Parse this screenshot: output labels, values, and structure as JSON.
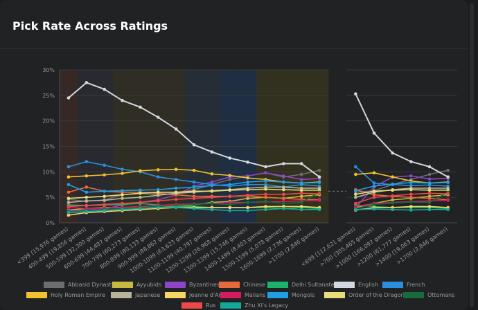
{
  "card": {
    "title": "Pick Rate Across Ratings"
  },
  "chart_data": {
    "type": "line",
    "title": "Pick Rate Across Ratings",
    "y_ticks": [
      "0%",
      "5%",
      "10%",
      "15%",
      "20%",
      "25%",
      "30%"
    ],
    "ylim": [
      0,
      30
    ],
    "grid": true,
    "legend_position": "bottom",
    "panels": [
      {
        "categories": [
          "<399 (15,976 games)",
          "400-499 (19,856 games)",
          "500-599 (32,300 games)",
          "600-699 (44,487 games)",
          "700-799 (60,273 games)",
          "800-899 (80,133 games)",
          "900-999 (88,862 games)",
          "1000-1099 (63,623 games)",
          "1100-1199 (40,797 games)",
          "1200-1299 (26,968 games)",
          "1300-1399 (15,746 games)",
          "1400-1499 (8,403 games)",
          "1500-1599 (5,078 games)",
          "1600-1699 (2,736 games)",
          ">1700 (2,846 games)"
        ],
        "band_colors": [
          "#3a2a26",
          "#2a2c33",
          "#2a2c33",
          "#333024",
          "#333024",
          "#333024",
          "#333024",
          "#26303a",
          "#26303a",
          "#1e3048",
          "#1e3048",
          "#35321d",
          "#35321d",
          "#35321d",
          "#35321d"
        ]
      },
      {
        "categories": [
          "<699 (112,621 games)",
          ">700 (305,465 games)",
          ">1000 (166,097 games)",
          ">1200 (61,777 games)",
          ">1400 (19,063 games)",
          ">1700 (2,846 games)"
        ]
      }
    ],
    "series": [
      {
        "name": "Abbasid Dynasty",
        "color": "#6e6e6e",
        "values": [
          4.6,
          4.2,
          4.5,
          5.5,
          5.8,
          5.5,
          5.8,
          6.5,
          7.5,
          8.5,
          9.2,
          9.8,
          9.0,
          9.5,
          10.3
        ],
        "values2": [
          6.0,
          6.3,
          7.5,
          8.5,
          9.5,
          10.3
        ]
      },
      {
        "name": "Ayyubids",
        "color": "#c9b83e",
        "values": [
          2.5,
          2.8,
          3.0,
          3.0,
          3.2,
          3.0,
          3.2,
          3.5,
          4.0,
          4.2,
          4.8,
          5.0,
          4.8,
          5.2,
          5.5
        ],
        "values2": [
          3.0,
          3.8,
          4.5,
          4.8,
          5.2,
          5.5
        ]
      },
      {
        "name": "Byzantines",
        "color": "#8e44c7",
        "values": [
          2.4,
          2.5,
          2.7,
          3.5,
          4.0,
          4.5,
          5.5,
          7.2,
          8.0,
          9.0,
          9.2,
          9.8,
          9.2,
          8.5,
          8.7
        ],
        "values2": [
          3.0,
          7.0,
          9.0,
          9.2,
          8.6,
          8.7
        ]
      },
      {
        "name": "Chinese",
        "color": "#e86a3a",
        "values": [
          6.0,
          7.0,
          6.2,
          6.0,
          6.0,
          5.8,
          5.5,
          5.2,
          5.2,
          5.2,
          5.3,
          5.0,
          4.8,
          4.6,
          4.5
        ],
        "values2": [
          6.5,
          5.5,
          5.2,
          5.0,
          4.8,
          4.5
        ]
      },
      {
        "name": "Delhi Sultanate",
        "color": "#19b36b",
        "values": [
          3.5,
          3.4,
          3.5,
          3.6,
          3.8,
          3.5,
          3.2,
          3.2,
          3.0,
          3.0,
          3.0,
          3.0,
          2.8,
          3.0,
          2.8
        ],
        "values2": [
          3.5,
          3.2,
          3.0,
          3.0,
          3.0,
          2.8
        ]
      },
      {
        "name": "English",
        "color": "#d2d8e0",
        "values": [
          24.5,
          27.5,
          26.2,
          24.0,
          22.7,
          20.7,
          18.4,
          15.3,
          13.9,
          12.7,
          11.9,
          11.0,
          11.6,
          11.6,
          9.0
        ],
        "values2": [
          25.3,
          17.6,
          13.7,
          12.0,
          11.0,
          9.0
        ]
      },
      {
        "name": "French",
        "color": "#2a8fe0",
        "values": [
          11.0,
          12.0,
          11.3,
          10.5,
          10.0,
          9.0,
          8.5,
          8.0,
          7.5,
          7.2,
          7.5,
          7.5,
          7.0,
          7.5,
          7.2
        ],
        "values2": [
          11.0,
          7.8,
          7.5,
          7.3,
          7.4,
          7.2
        ]
      },
      {
        "name": "Holy Roman Empire",
        "color": "#f2c12e",
        "values": [
          9.0,
          9.2,
          9.4,
          9.7,
          10.2,
          10.4,
          10.5,
          10.3,
          9.6,
          9.3,
          8.8,
          8.5,
          8.0,
          7.8,
          8.0
        ],
        "values2": [
          9.5,
          9.8,
          9.0,
          8.2,
          7.8,
          8.0
        ]
      },
      {
        "name": "Japanese",
        "color": "#b8b49a",
        "values": [
          4.0,
          4.3,
          4.4,
          4.8,
          5.0,
          5.4,
          5.8,
          6.0,
          6.3,
          6.5,
          6.8,
          7.0,
          7.0,
          6.8,
          6.8
        ],
        "values2": [
          5.0,
          6.0,
          6.5,
          6.8,
          6.8,
          6.8
        ]
      },
      {
        "name": "Jeanne d'Arc",
        "color": "#f7d565",
        "values": [
          1.5,
          2.0,
          2.2,
          2.4,
          2.6,
          2.8,
          3.0,
          3.0,
          3.0,
          3.0,
          3.0,
          3.2,
          3.2,
          3.2,
          3.0
        ],
        "values2": [
          2.5,
          3.0,
          3.0,
          3.2,
          3.2,
          3.0
        ]
      },
      {
        "name": "Malians",
        "color": "#d81b60",
        "values": [
          3.0,
          2.8,
          2.9,
          3.0,
          3.2,
          3.4,
          3.6,
          3.7,
          3.8,
          4.0,
          4.0,
          4.1,
          4.2,
          4.3,
          4.4
        ],
        "values2": [
          3.2,
          3.8,
          4.0,
          4.2,
          4.3,
          4.4
        ]
      },
      {
        "name": "Mongols",
        "color": "#1e9fe6",
        "values": [
          7.5,
          6.0,
          6.2,
          6.3,
          6.4,
          6.5,
          6.8,
          7.0,
          7.3,
          7.5,
          8.0,
          8.2,
          8.0,
          7.8,
          7.9
        ],
        "values2": [
          6.3,
          7.2,
          7.6,
          7.9,
          7.8,
          7.9
        ]
      },
      {
        "name": "Order of the Dragon",
        "color": "#e8dd7a",
        "values": [
          4.8,
          5.0,
          5.2,
          5.5,
          5.8,
          6.0,
          6.0,
          6.2,
          6.2,
          6.4,
          6.5,
          6.6,
          6.5,
          6.4,
          6.4
        ],
        "values2": [
          5.6,
          6.2,
          6.4,
          6.5,
          6.4,
          6.4
        ]
      },
      {
        "name": "Ottomans",
        "color": "#1a6b3c",
        "values": [
          2.2,
          2.4,
          2.6,
          2.8,
          3.0,
          3.2,
          3.4,
          3.6,
          3.8,
          3.6,
          4.0,
          4.2,
          3.8,
          4.0,
          6.0
        ],
        "values2": [
          2.8,
          3.6,
          3.9,
          4.1,
          4.0,
          6.0
        ]
      },
      {
        "name": "Rus",
        "color": "#f04848",
        "values": [
          3.2,
          3.4,
          3.6,
          3.8,
          4.0,
          4.3,
          4.6,
          4.8,
          5.0,
          5.2,
          5.4,
          5.6,
          5.6,
          5.8,
          5.7
        ],
        "values2": [
          3.8,
          5.0,
          5.3,
          5.6,
          5.8,
          5.7
        ]
      },
      {
        "name": "Zhu Xi's Legacy",
        "color": "#14a89a",
        "values": [
          2.0,
          2.2,
          2.4,
          2.6,
          2.8,
          3.0,
          3.0,
          2.8,
          2.6,
          2.4,
          2.4,
          2.6,
          2.8,
          2.6,
          2.6
        ],
        "values2": [
          2.6,
          2.7,
          2.6,
          2.5,
          2.6,
          2.6
        ]
      }
    ]
  }
}
